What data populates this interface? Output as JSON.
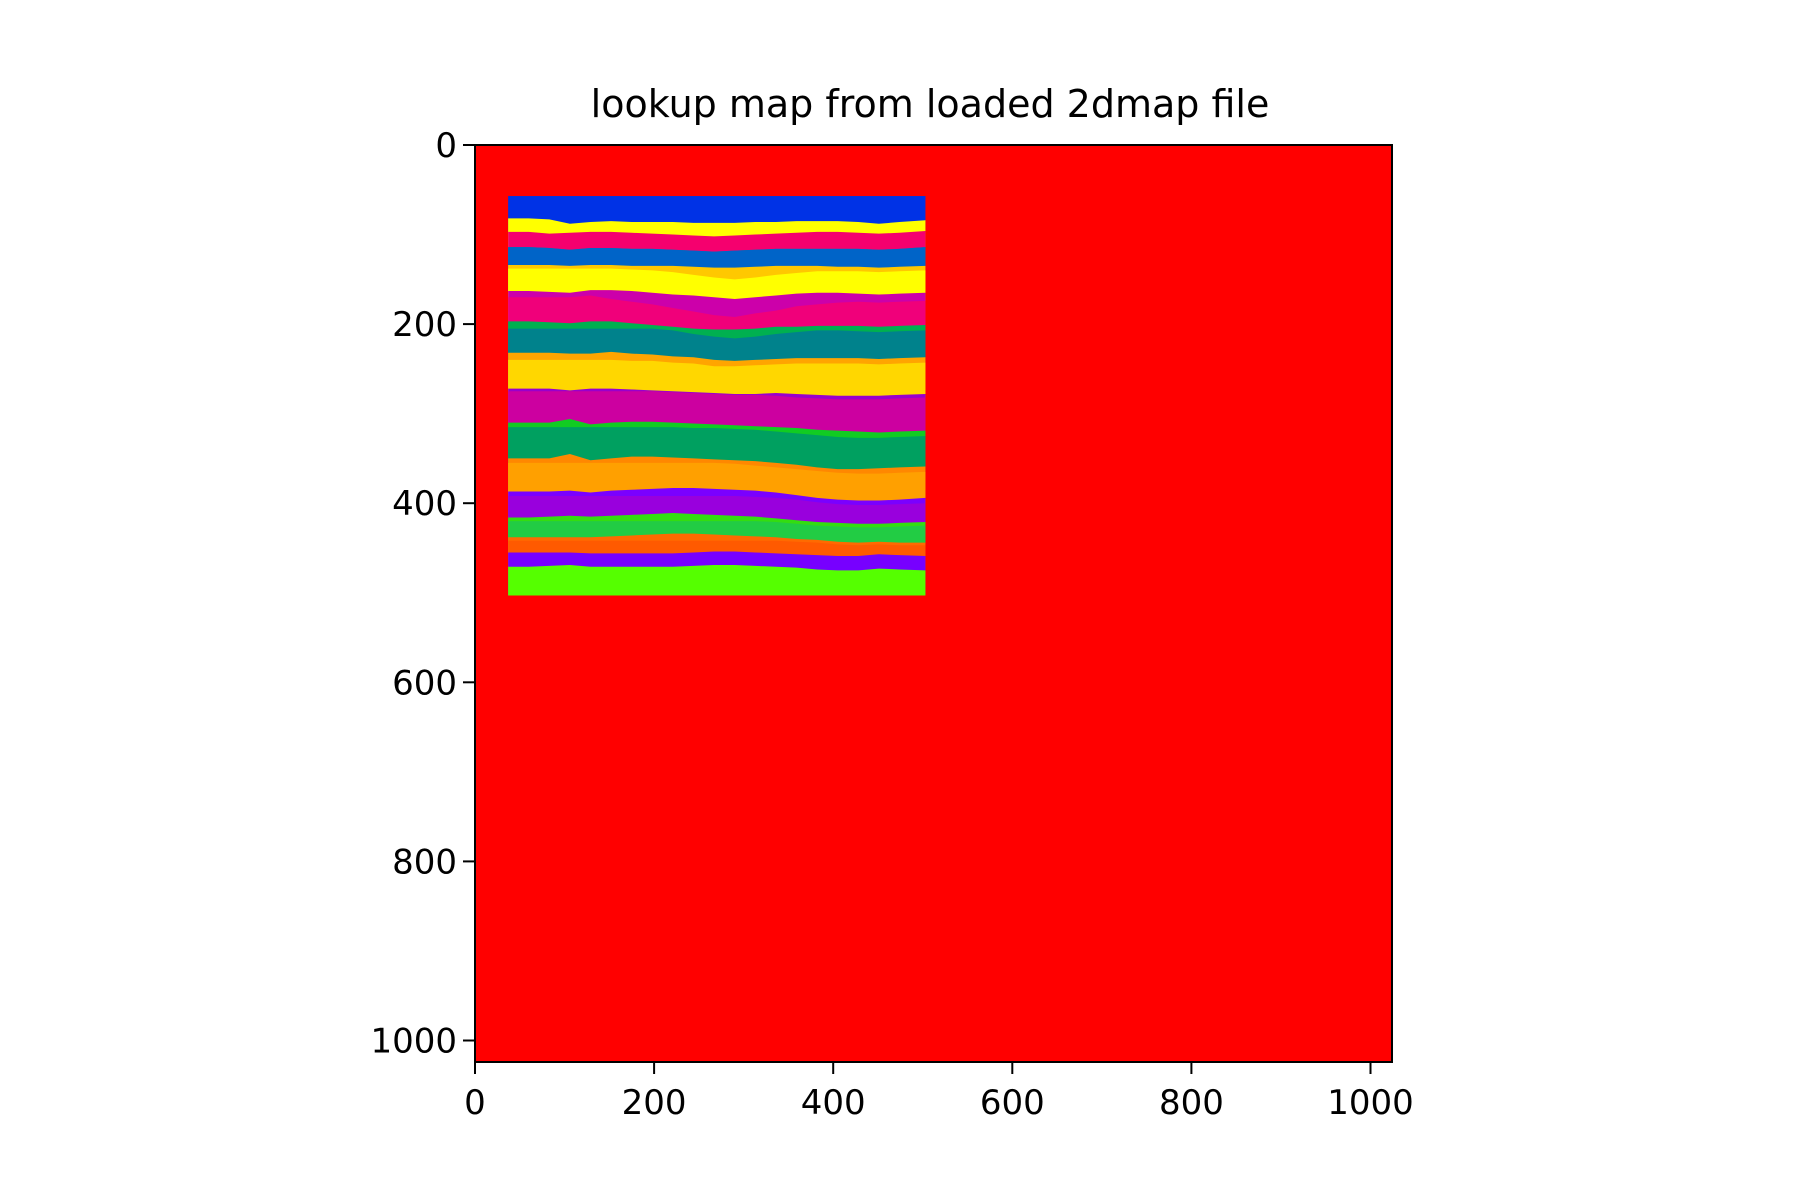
{
  "chart_data": {
    "type": "heatmap",
    "title": "lookup map from loaded 2dmap file",
    "xlabel": "",
    "ylabel": "",
    "xlim": [
      0,
      1024
    ],
    "ylim": [
      1024,
      0
    ],
    "y_inverted": true,
    "grid": false,
    "legend": "none",
    "xticks": [
      0,
      200,
      400,
      600,
      800,
      1000
    ],
    "yticks": [
      0,
      200,
      400,
      600,
      800,
      1000
    ],
    "xtick_labels": [
      "0",
      "200",
      "400",
      "600",
      "800",
      "1000"
    ],
    "ytick_labels": [
      "0",
      "200",
      "400",
      "600",
      "800",
      "1000"
    ],
    "background_color": "#ff0000",
    "inset_region": {
      "x_range": [
        37,
        503
      ],
      "y_range": [
        57,
        503
      ]
    },
    "boundary_x": [
      37,
      60,
      83,
      106,
      129,
      152,
      175,
      198,
      221,
      244,
      267,
      290,
      313,
      336,
      359,
      382,
      405,
      428,
      451,
      474,
      503
    ],
    "bands": [
      {
        "color": "#0032e6",
        "top": [
          57,
          57,
          57,
          57,
          57,
          57,
          57,
          57,
          57,
          57,
          57,
          57,
          57,
          57,
          57,
          57,
          57,
          57,
          57,
          57,
          57
        ]
      },
      {
        "color": "#ffff00",
        "top": [
          82,
          82,
          83,
          88,
          86,
          85,
          86,
          86,
          86,
          87,
          87,
          87,
          86,
          86,
          85,
          85,
          85,
          86,
          88,
          86,
          84
        ]
      },
      {
        "color": "#f5006e",
        "top": [
          97,
          97,
          99,
          98,
          97,
          97,
          98,
          99,
          100,
          101,
          102,
          101,
          100,
          99,
          98,
          97,
          97,
          98,
          99,
          98,
          96
        ]
      },
      {
        "color": "#008c8c",
        "top": [
          114,
          114,
          115,
          117,
          115,
          115,
          116,
          116,
          117,
          118,
          119,
          118,
          117,
          116,
          116,
          116,
          116,
          116,
          117,
          116,
          114
        ]
      },
      {
        "color": "#0064c8",
        "top": [
          114,
          114,
          115,
          117,
          115,
          115,
          116,
          116,
          117,
          118,
          119,
          118,
          117,
          116,
          116,
          116,
          116,
          116,
          117,
          116,
          114
        ]
      },
      {
        "color": "#ffc800",
        "top": [
          134,
          134,
          134,
          135,
          134,
          134,
          135,
          135,
          135,
          136,
          137,
          137,
          136,
          135,
          135,
          135,
          136,
          136,
          137,
          136,
          135
        ]
      },
      {
        "color": "#ffff00",
        "top": [
          138,
          138,
          138,
          138,
          138,
          138,
          139,
          140,
          142,
          145,
          148,
          150,
          148,
          145,
          143,
          141,
          141,
          141,
          142,
          141,
          140
        ]
      },
      {
        "color": "#cc00aa",
        "top": [
          163,
          163,
          164,
          165,
          162,
          162,
          163,
          165,
          167,
          168,
          170,
          172,
          170,
          168,
          166,
          165,
          165,
          166,
          167,
          166,
          165
        ]
      },
      {
        "color": "#f0007a",
        "top": [
          170,
          170,
          170,
          170,
          168,
          172,
          175,
          178,
          182,
          186,
          190,
          192,
          188,
          185,
          180,
          178,
          176,
          175,
          176,
          175,
          174
        ]
      },
      {
        "color": "#00b050",
        "top": [
          197,
          197,
          198,
          199,
          197,
          197,
          199,
          201,
          203,
          205,
          206,
          206,
          205,
          203,
          203,
          202,
          202,
          202,
          203,
          202,
          201
        ]
      },
      {
        "color": "#00828c",
        "top": [
          205,
          205,
          205,
          205,
          205,
          205,
          205,
          205,
          207,
          211,
          214,
          216,
          214,
          211,
          209,
          207,
          207,
          208,
          209,
          208,
          207
        ]
      },
      {
        "color": "#ffa500",
        "top": [
          232,
          232,
          232,
          233,
          233,
          231,
          233,
          234,
          236,
          237,
          240,
          241,
          240,
          239,
          238,
          238,
          238,
          238,
          239,
          238,
          237
        ]
      },
      {
        "color": "#ffd700",
        "top": [
          240,
          240,
          240,
          240,
          240,
          240,
          241,
          241,
          243,
          244,
          247,
          247,
          246,
          245,
          244,
          244,
          244,
          244,
          245,
          244,
          243
        ]
      },
      {
        "color": "#9900cc",
        "top": [
          272,
          272,
          272,
          274,
          272,
          272,
          273,
          274,
          275,
          276,
          277,
          278,
          278,
          277,
          278,
          279,
          280,
          280,
          280,
          279,
          278
        ]
      },
      {
        "color": "#cc00a0",
        "top": [
          275,
          275,
          275,
          275,
          275,
          275,
          275,
          275,
          276,
          277,
          278,
          279,
          279,
          280,
          282,
          283,
          284,
          284,
          284,
          283,
          282
        ]
      },
      {
        "color": "#11cc22",
        "top": [
          310,
          310,
          310,
          306,
          312,
          310,
          309,
          309,
          310,
          311,
          312,
          313,
          314,
          315,
          316,
          318,
          319,
          320,
          321,
          320,
          319
        ]
      },
      {
        "color": "#00a060",
        "top": [
          315,
          315,
          315,
          315,
          315,
          315,
          315,
          315,
          315,
          316,
          316,
          317,
          318,
          320,
          322,
          324,
          326,
          327,
          327,
          326,
          325
        ]
      },
      {
        "color": "#ff8800",
        "top": [
          350,
          350,
          350,
          345,
          352,
          350,
          348,
          348,
          349,
          350,
          351,
          352,
          353,
          355,
          357,
          360,
          362,
          362,
          361,
          360,
          359
        ]
      },
      {
        "color": "#ffa000",
        "top": [
          355,
          355,
          355,
          355,
          355,
          355,
          355,
          355,
          355,
          355,
          355,
          356,
          358,
          360,
          362,
          364,
          366,
          367,
          367,
          366,
          365
        ]
      },
      {
        "color": "#7a00ff",
        "top": [
          387,
          387,
          387,
          386,
          388,
          386,
          385,
          384,
          383,
          383,
          384,
          385,
          386,
          388,
          391,
          394,
          396,
          397,
          397,
          396,
          394
        ]
      },
      {
        "color": "#9900dd",
        "top": [
          392,
          392,
          392,
          392,
          392,
          392,
          392,
          392,
          392,
          392,
          392,
          392,
          393,
          394,
          396,
          399,
          401,
          402,
          402,
          401,
          400
        ]
      },
      {
        "color": "#33dd11",
        "top": [
          416,
          416,
          415,
          414,
          415,
          414,
          413,
          412,
          411,
          412,
          413,
          414,
          415,
          417,
          419,
          421,
          422,
          423,
          423,
          422,
          421
        ]
      },
      {
        "color": "#22cc44",
        "top": [
          420,
          420,
          420,
          420,
          420,
          420,
          420,
          420,
          420,
          420,
          420,
          420,
          420,
          421,
          423,
          425,
          426,
          427,
          427,
          426,
          425
        ]
      },
      {
        "color": "#ff6a00",
        "top": [
          438,
          438,
          438,
          438,
          438,
          437,
          436,
          435,
          434,
          434,
          435,
          436,
          437,
          438,
          440,
          441,
          443,
          444,
          443,
          444,
          444
        ]
      },
      {
        "color": "#ff5a00",
        "top": [
          442,
          442,
          442,
          442,
          442,
          442,
          442,
          442,
          442,
          442,
          442,
          442,
          442,
          442,
          443,
          444,
          446,
          447,
          446,
          447,
          447
        ]
      },
      {
        "color": "#7700ff",
        "top": [
          455,
          455,
          455,
          455,
          456,
          456,
          456,
          456,
          456,
          455,
          454,
          454,
          455,
          456,
          457,
          458,
          459,
          459,
          457,
          458,
          459
        ]
      },
      {
        "color": "#55ff00",
        "top": [
          471,
          471,
          470,
          469,
          471,
          471,
          471,
          471,
          471,
          470,
          469,
          469,
          470,
          471,
          472,
          474,
          475,
          475,
          473,
          474,
          475
        ]
      }
    ]
  }
}
